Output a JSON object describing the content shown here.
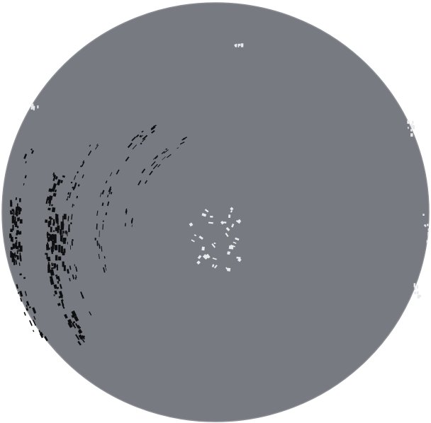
{
  "disc": {
    "fill": "#777a81",
    "edge": "#8a8d93",
    "dark_marks": "#0d0e10",
    "light_marks": "#e9eaec"
  }
}
